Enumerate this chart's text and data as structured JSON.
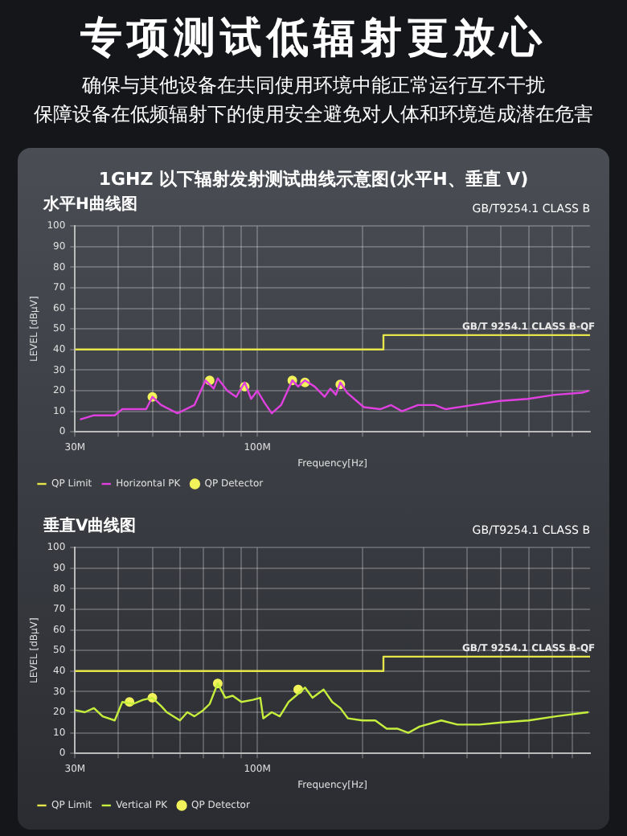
{
  "chart_data": [
    {
      "type": "line",
      "title": "水平H曲线图",
      "subtitle": "GB/T9254.1 CLASS B",
      "xlabel": "Frequency[Hz]",
      "ylabel": "LEVEL [dBμV]",
      "log": "x",
      "grid": true,
      "legend": "bottom left",
      "xlim": [
        30,
        900
      ],
      "xticks": [
        {
          "value": 30,
          "label": "30M"
        },
        {
          "value": 40,
          "label": null
        },
        {
          "value": 50,
          "label": null
        },
        {
          "value": 60,
          "label": null
        },
        {
          "value": 70,
          "label": null
        },
        {
          "value": 80,
          "label": null
        },
        {
          "value": 90,
          "label": null
        },
        {
          "value": 100,
          "label": "100M"
        },
        {
          "value": 200,
          "label": null
        },
        {
          "value": 300,
          "label": null
        },
        {
          "value": 400,
          "label": null
        },
        {
          "value": 500,
          "label": null
        },
        {
          "value": 600,
          "label": null
        },
        {
          "value": 700,
          "label": null
        },
        {
          "value": 800,
          "label": null
        }
      ],
      "ylim": [
        0,
        100
      ],
      "yticks": [
        0,
        10,
        20,
        30,
        40,
        50,
        60,
        70,
        80,
        90,
        100
      ],
      "annotations": [
        "专项测试低辐射更放心",
        "确保与其他设备在共同使用环境中能正常运行互不干扰",
        "保障设备在低频辐射下的使用安全避免对人体和环境造成潜在危害",
        "1GHZ 以下辐射发射测试曲线示意图(水平H、垂直 V)",
        {
          "text": "GB/T 9254.1 CLASS B-QF",
          "x": 600,
          "y": 47
        }
      ],
      "series": [
        {
          "name": "QP Limit",
          "type": "line",
          "color": "#e6e64a",
          "x": [
            30,
            230,
            230,
            900
          ],
          "values": [
            40,
            40,
            47,
            47
          ]
        },
        {
          "name": "Horizontal PK",
          "color": "#e040e0",
          "x": [
            31,
            34,
            39,
            41,
            48,
            50,
            53,
            59,
            66,
            71,
            75,
            77,
            82,
            87,
            92,
            96,
            100,
            105,
            110,
            117,
            126,
            131,
            137,
            146,
            156,
            162,
            168,
            173,
            181,
            202,
            225,
            242,
            260,
            289,
            323,
            347,
            415,
            497,
            596,
            713,
            854,
            893
          ],
          "values": [
            6,
            8,
            8,
            11,
            11,
            17,
            13,
            9,
            13,
            25,
            21,
            26,
            20,
            17,
            24,
            16,
            20,
            14,
            9,
            13,
            25,
            22,
            25,
            22,
            17,
            21,
            18,
            24,
            19,
            12,
            11,
            13,
            10,
            13,
            13,
            11,
            13,
            15,
            16,
            18,
            19,
            20
          ]
        },
        {
          "name": "QP Detector",
          "type": "scatter",
          "marker": "circle",
          "color": "#f2f25a",
          "x": [
            50,
            73,
            92,
            126,
            137,
            173
          ],
          "values": [
            17,
            25,
            22,
            25,
            24,
            23
          ]
        }
      ]
    },
    {
      "type": "line",
      "title": "垂直V曲线图",
      "subtitle": "GB/T9254.1 CLASS B",
      "xlabel": "Frequency[Hz]",
      "ylabel": "LEVEL [dBμV]",
      "log": "x",
      "grid": true,
      "legend": "bottom left",
      "xlim": [
        30,
        900
      ],
      "xticks": [
        {
          "value": 30,
          "label": "30M"
        },
        {
          "value": 40,
          "label": null
        },
        {
          "value": 50,
          "label": null
        },
        {
          "value": 60,
          "label": null
        },
        {
          "value": 70,
          "label": null
        },
        {
          "value": 80,
          "label": null
        },
        {
          "value": 90,
          "label": null
        },
        {
          "value": 100,
          "label": "100M"
        },
        {
          "value": 200,
          "label": null
        },
        {
          "value": 300,
          "label": null
        },
        {
          "value": 400,
          "label": null
        },
        {
          "value": 500,
          "label": null
        },
        {
          "value": 600,
          "label": null
        },
        {
          "value": 700,
          "label": null
        },
        {
          "value": 800,
          "label": null
        }
      ],
      "ylim": [
        0,
        100
      ],
      "yticks": [
        0,
        10,
        20,
        30,
        40,
        50,
        60,
        70,
        80,
        90,
        100
      ],
      "annotations": [
        {
          "text": "GB/T 9254.1 CLASS B-QF",
          "x": 600,
          "y": 47
        }
      ],
      "series": [
        {
          "name": "QP Limit",
          "type": "line",
          "color": "#e6e64a",
          "x": [
            30,
            230,
            230,
            900
          ],
          "values": [
            40,
            40,
            47,
            47
          ]
        },
        {
          "name": "Vertical PK",
          "color": "#c6ee3c",
          "x": [
            30,
            32,
            34,
            36,
            39,
            41,
            44,
            47,
            50,
            53,
            55,
            60,
            63,
            66,
            70,
            73,
            77,
            81,
            85,
            90,
            97,
            102,
            104,
            110,
            116,
            123,
            129,
            137,
            144,
            155,
            164,
            173,
            182,
            200,
            218,
            235,
            252,
            271,
            292,
            337,
            375,
            434,
            501,
            600,
            719,
            890
          ],
          "values": [
            21,
            20,
            22,
            18,
            16,
            25,
            24,
            26,
            27,
            23,
            20,
            16,
            20,
            18,
            21,
            24,
            34,
            27,
            28,
            25,
            26,
            27,
            17,
            20,
            18,
            25,
            28,
            32,
            27,
            31,
            25,
            22,
            17,
            16,
            16,
            12,
            12,
            10,
            13,
            16,
            14,
            14,
            15,
            16,
            18,
            20
          ]
        },
        {
          "name": "QP Detector",
          "type": "scatter",
          "marker": "circle",
          "color": "#f2f25a",
          "x": [
            43,
            50,
            77,
            131
          ],
          "values": [
            25,
            27,
            34,
            31
          ]
        }
      ]
    }
  ]
}
